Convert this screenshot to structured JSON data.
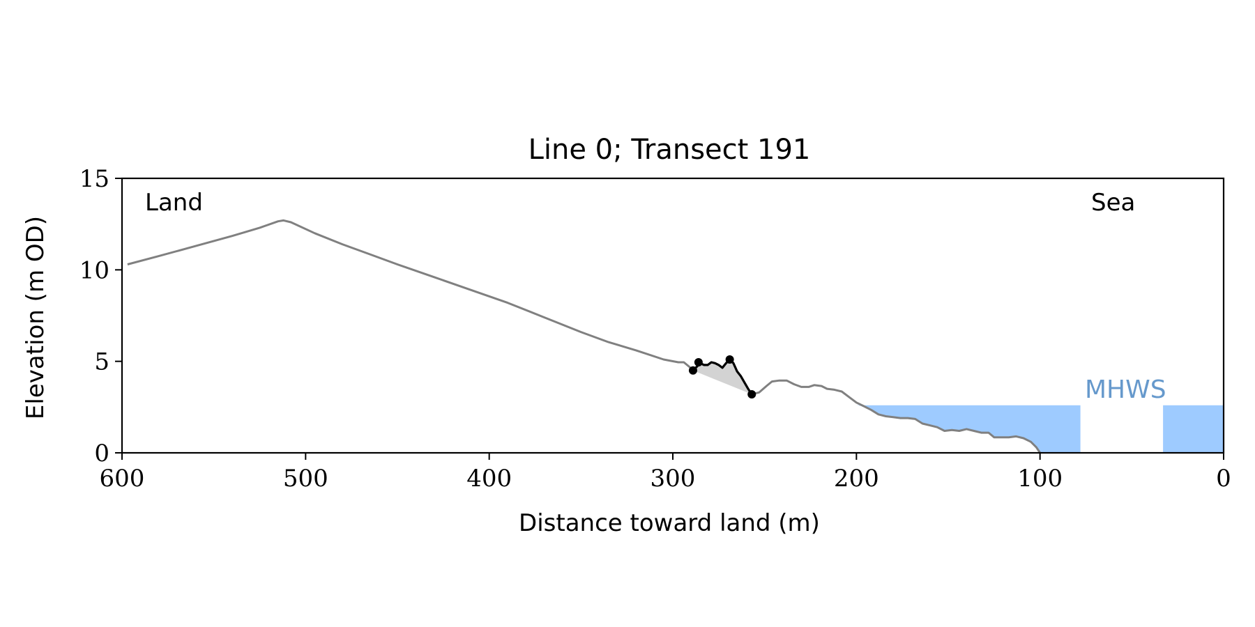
{
  "chart_data": {
    "type": "line",
    "title": "Line 0; Transect 191",
    "xlabel": "Distance toward land (m)",
    "ylabel": "Elevation (m OD)",
    "xlim": [
      600,
      0
    ],
    "ylim": [
      0,
      15
    ],
    "x_ticks": [
      600,
      500,
      400,
      300,
      200,
      100,
      0
    ],
    "y_ticks": [
      0,
      5,
      10,
      15
    ],
    "x_tick_labels": [
      "600",
      "500",
      "400",
      "300",
      "200",
      "100",
      "0"
    ],
    "y_tick_labels": [
      "0",
      "5",
      "10",
      "15"
    ],
    "grid": false,
    "annotations": {
      "land": "Land",
      "sea": "Sea",
      "mhws": "MHWS"
    },
    "mhws_level": 2.6,
    "colors": {
      "profile": "#808080",
      "selection": "#000000",
      "water": "#9ecbff",
      "fill": "#d3d3d3",
      "mhws_text": "#6699cc"
    },
    "profile": [
      [
        597,
        10.3
      ],
      [
        580,
        10.75
      ],
      [
        560,
        11.3
      ],
      [
        540,
        11.85
      ],
      [
        525,
        12.3
      ],
      [
        515,
        12.65
      ],
      [
        512,
        12.7
      ],
      [
        508,
        12.6
      ],
      [
        495,
        12.0
      ],
      [
        480,
        11.4
      ],
      [
        465,
        10.85
      ],
      [
        450,
        10.3
      ],
      [
        430,
        9.6
      ],
      [
        410,
        8.9
      ],
      [
        390,
        8.2
      ],
      [
        370,
        7.4
      ],
      [
        350,
        6.6
      ],
      [
        335,
        6.05
      ],
      [
        320,
        5.6
      ],
      [
        305,
        5.1
      ],
      [
        297,
        4.95
      ],
      [
        294,
        4.95
      ],
      [
        291,
        4.7
      ],
      [
        289,
        4.5
      ],
      [
        285,
        4.9
      ],
      [
        283,
        4.8
      ],
      [
        281,
        4.8
      ],
      [
        279,
        4.95
      ],
      [
        277,
        4.9
      ],
      [
        275,
        4.8
      ],
      [
        273,
        4.65
      ],
      [
        271,
        4.9
      ],
      [
        269,
        5.1
      ],
      [
        267,
        4.9
      ],
      [
        265,
        4.45
      ],
      [
        263,
        4.2
      ],
      [
        261,
        3.85
      ],
      [
        259,
        3.5
      ],
      [
        257,
        3.2
      ],
      [
        253,
        3.3
      ],
      [
        249,
        3.65
      ],
      [
        246,
        3.9
      ],
      [
        242,
        3.95
      ],
      [
        238,
        3.95
      ],
      [
        234,
        3.75
      ],
      [
        230,
        3.6
      ],
      [
        226,
        3.6
      ],
      [
        223,
        3.7
      ],
      [
        219,
        3.65
      ],
      [
        216,
        3.5
      ],
      [
        212,
        3.45
      ],
      [
        208,
        3.35
      ],
      [
        204,
        3.05
      ],
      [
        200,
        2.75
      ],
      [
        196,
        2.55
      ],
      [
        192,
        2.35
      ],
      [
        188,
        2.1
      ],
      [
        184,
        2.0
      ],
      [
        180,
        1.95
      ],
      [
        176,
        1.9
      ],
      [
        172,
        1.9
      ],
      [
        168,
        1.85
      ],
      [
        164,
        1.6
      ],
      [
        160,
        1.5
      ],
      [
        156,
        1.4
      ],
      [
        152,
        1.2
      ],
      [
        148,
        1.25
      ],
      [
        144,
        1.2
      ],
      [
        140,
        1.3
      ],
      [
        136,
        1.2
      ],
      [
        132,
        1.1
      ],
      [
        128,
        1.1
      ],
      [
        125,
        0.85
      ],
      [
        121,
        0.85
      ],
      [
        117,
        0.85
      ],
      [
        113,
        0.9
      ],
      [
        109,
        0.8
      ],
      [
        105,
        0.6
      ],
      [
        102,
        0.3
      ],
      [
        100,
        0.0
      ]
    ],
    "selection": [
      [
        289,
        4.5
      ],
      [
        285,
        4.9
      ],
      [
        283,
        4.8
      ],
      [
        281,
        4.8
      ],
      [
        279,
        4.95
      ],
      [
        277,
        4.9
      ],
      [
        275,
        4.8
      ],
      [
        273,
        4.65
      ],
      [
        271,
        4.9
      ],
      [
        269,
        5.1
      ],
      [
        267,
        4.9
      ],
      [
        265,
        4.45
      ],
      [
        263,
        4.2
      ],
      [
        261,
        3.85
      ],
      [
        259,
        3.5
      ],
      [
        257,
        3.2
      ]
    ],
    "selection_markers": [
      [
        289,
        4.5
      ],
      [
        286,
        4.95
      ],
      [
        269,
        5.1
      ],
      [
        257,
        3.2
      ]
    ],
    "water_regions": [
      {
        "points": [
          [
            200,
            2.6
          ],
          [
            78,
            2.6
          ],
          [
            78,
            0
          ],
          [
            100,
            0
          ],
          [
            102,
            0.3
          ],
          [
            105,
            0.6
          ],
          [
            109,
            0.8
          ],
          [
            113,
            0.9
          ],
          [
            117,
            0.85
          ],
          [
            121,
            0.85
          ],
          [
            125,
            0.85
          ],
          [
            128,
            1.1
          ],
          [
            132,
            1.1
          ],
          [
            136,
            1.2
          ],
          [
            140,
            1.3
          ],
          [
            144,
            1.2
          ],
          [
            148,
            1.25
          ],
          [
            152,
            1.2
          ],
          [
            156,
            1.4
          ],
          [
            160,
            1.5
          ],
          [
            164,
            1.6
          ],
          [
            168,
            1.85
          ],
          [
            172,
            1.9
          ],
          [
            176,
            1.9
          ],
          [
            180,
            1.95
          ],
          [
            184,
            2.0
          ],
          [
            188,
            2.1
          ],
          [
            192,
            2.35
          ],
          [
            196,
            2.55
          ]
        ]
      },
      {
        "points": [
          [
            33,
            2.6
          ],
          [
            0,
            2.6
          ],
          [
            0,
            0
          ],
          [
            33,
            0
          ]
        ]
      }
    ]
  }
}
